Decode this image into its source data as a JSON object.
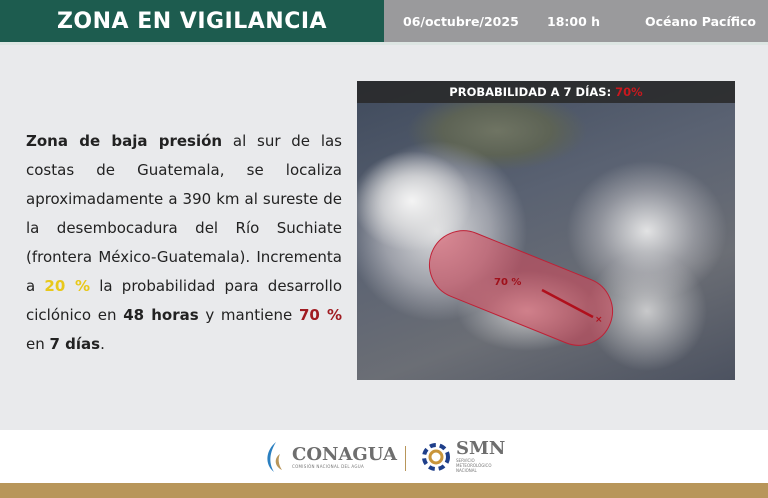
{
  "header": {
    "title": "ZONA EN VIGILANCIA",
    "date": "06/octubre/2025",
    "time": "18:00 h",
    "region": "Océano Pacífico"
  },
  "description": {
    "p1_bold": "Zona de baja presión",
    "p1": " al sur de las costas de Guatemala, se localiza aproximadamente a 390 km al sureste de la desembocadura del Río Suchiate (frontera México-Guatemala). Incrementa a ",
    "p2_pct48": "20 %",
    "p3": "  la probabilidad para desarrollo ciclónico en ",
    "p4_bold": "48 horas",
    "p5": " y mantiene ",
    "p6_pct7": "70 %",
    "p7": " en ",
    "p8_bold": "7 días",
    "p9": "."
  },
  "map": {
    "title": "PROBABILIDAD A 7 DÍAS:",
    "title_pct": "70%",
    "area_label": "70 %",
    "area_color": "#d9475a"
  },
  "footer": {
    "conagua": "CONAGUA",
    "conagua_sub": "COMISIÓN NACIONAL DEL AGUA",
    "smn": "SMN",
    "smn_sub": "SERVICIO METEOROLÓGICO NACIONAL"
  },
  "colors": {
    "header_green": "#1d5c4f",
    "header_gray": "#9a9a9c",
    "highlight_yellow": "#e8c81a",
    "highlight_red": "#a01c22",
    "band": "#b8965a"
  }
}
